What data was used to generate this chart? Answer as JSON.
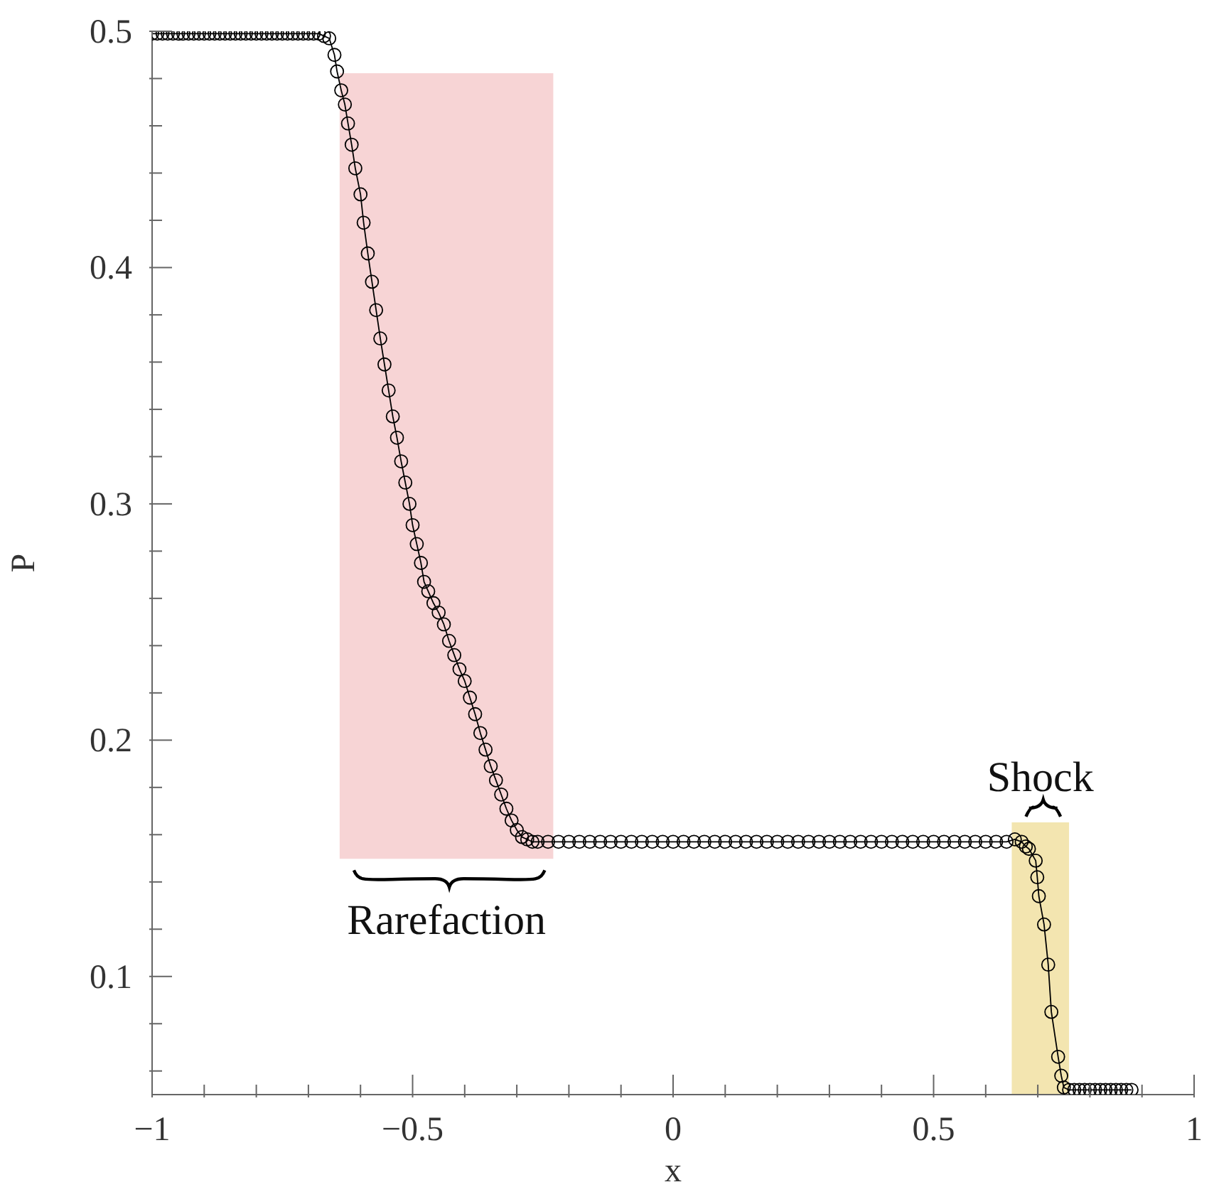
{
  "chart_data": {
    "type": "line",
    "xlabel": "x",
    "ylabel": "P",
    "xlim": [
      -1,
      1
    ],
    "ylim": [
      0.05,
      0.5
    ],
    "xticks": [
      {
        "value": -1,
        "label": "−1"
      },
      {
        "value": -0.9,
        "label": null
      },
      {
        "value": -0.8,
        "label": null
      },
      {
        "value": -0.7,
        "label": null
      },
      {
        "value": -0.6,
        "label": null
      },
      {
        "value": -0.5,
        "label": "−0.5"
      },
      {
        "value": -0.4,
        "label": null
      },
      {
        "value": -0.3,
        "label": null
      },
      {
        "value": -0.2,
        "label": null
      },
      {
        "value": -0.1,
        "label": null
      },
      0,
      {
        "value": 0.1,
        "label": null
      },
      {
        "value": 0.2,
        "label": null
      },
      {
        "value": 0.3,
        "label": null
      },
      {
        "value": 0.4,
        "label": null
      },
      0.5,
      {
        "value": 0.6,
        "label": null
      },
      {
        "value": 0.7,
        "label": null
      },
      {
        "value": 0.8,
        "label": null
      },
      {
        "value": 0.9,
        "label": null
      },
      1
    ],
    "yticks": [
      {
        "value": 0.06,
        "label": null
      },
      {
        "value": 0.08,
        "label": null
      },
      0.1,
      {
        "value": 0.12,
        "label": null
      },
      {
        "value": 0.14,
        "label": null
      },
      {
        "value": 0.16,
        "label": null
      },
      {
        "value": 0.18,
        "label": null
      },
      0.2,
      {
        "value": 0.22,
        "label": null
      },
      {
        "value": 0.24,
        "label": null
      },
      {
        "value": 0.26,
        "label": null
      },
      {
        "value": 0.28,
        "label": null
      },
      0.3,
      {
        "value": 0.32,
        "label": null
      },
      {
        "value": 0.34,
        "label": null
      },
      {
        "value": 0.36,
        "label": null
      },
      {
        "value": 0.38,
        "label": null
      },
      0.4,
      {
        "value": 0.42,
        "label": null
      },
      {
        "value": 0.44,
        "label": null
      },
      {
        "value": 0.46,
        "label": null
      },
      {
        "value": 0.48,
        "label": null
      },
      0.5
    ],
    "grid": false,
    "marker": "circle",
    "line_style": "solid",
    "bands": [
      {
        "axis": "x",
        "from": -0.64,
        "to": -0.23,
        "color": "#f7d4d5",
        "label": "Rarefaction"
      },
      {
        "axis": "x",
        "from": 0.65,
        "to": 0.76,
        "color": "#f3e5b0",
        "label": "Shock"
      }
    ],
    "series": [
      {
        "color": "#000000",
        "x": [
          -1,
          -0.99,
          -0.98,
          -0.97,
          -0.96,
          -0.95,
          -0.94,
          -0.93,
          -0.92,
          -0.91,
          -0.9,
          -0.89,
          -0.88,
          -0.87,
          -0.86,
          -0.85,
          -0.84,
          -0.83,
          -0.82,
          -0.81,
          -0.8,
          -0.79,
          -0.78,
          -0.77,
          -0.76,
          -0.75,
          -0.74,
          -0.73,
          -0.72,
          -0.71,
          -0.7,
          -0.69,
          -0.68,
          -0.67,
          -0.66,
          -0.65,
          -0.645,
          -0.637,
          -0.63,
          -0.624,
          -0.617,
          -0.61,
          -0.6,
          -0.594,
          -0.586,
          -0.578,
          -0.57,
          -0.562,
          -0.554,
          -0.546,
          -0.538,
          -0.53,
          -0.522,
          -0.514,
          -0.506,
          -0.5,
          -0.492,
          -0.484,
          -0.478,
          -0.47,
          -0.46,
          -0.45,
          -0.44,
          -0.43,
          -0.42,
          -0.41,
          -0.4,
          -0.39,
          -0.38,
          -0.37,
          -0.36,
          -0.35,
          -0.34,
          -0.33,
          -0.32,
          -0.31,
          -0.3,
          -0.29,
          -0.28,
          -0.27,
          -0.26,
          -0.24,
          -0.22,
          -0.2,
          -0.18,
          -0.16,
          -0.14,
          -0.12,
          -0.1,
          -0.08,
          -0.06,
          -0.04,
          -0.02,
          0,
          0.02,
          0.04,
          0.06,
          0.08,
          0.1,
          0.12,
          0.14,
          0.16,
          0.18,
          0.2,
          0.22,
          0.24,
          0.26,
          0.28,
          0.3,
          0.32,
          0.34,
          0.36,
          0.38,
          0.4,
          0.42,
          0.44,
          0.46,
          0.48,
          0.5,
          0.52,
          0.54,
          0.56,
          0.58,
          0.6,
          0.62,
          0.64,
          0.656,
          0.669,
          0.677,
          0.683,
          0.696,
          0.699,
          0.702,
          0.712,
          0.72,
          0.726,
          0.739,
          0.745,
          0.75,
          0.76,
          0.77,
          0.78,
          0.79,
          0.8,
          0.81,
          0.82,
          0.83,
          0.84,
          0.85,
          0.86,
          0.87,
          0.88
        ],
        "values": [
          0.499,
          0.499,
          0.499,
          0.499,
          0.499,
          0.499,
          0.499,
          0.499,
          0.499,
          0.499,
          0.499,
          0.499,
          0.499,
          0.499,
          0.499,
          0.499,
          0.499,
          0.499,
          0.499,
          0.499,
          0.499,
          0.499,
          0.499,
          0.499,
          0.499,
          0.499,
          0.499,
          0.499,
          0.499,
          0.499,
          0.499,
          0.499,
          0.499,
          0.498,
          0.497,
          0.49,
          0.483,
          0.475,
          0.469,
          0.461,
          0.452,
          0.442,
          0.431,
          0.419,
          0.406,
          0.394,
          0.382,
          0.37,
          0.359,
          0.348,
          0.337,
          0.328,
          0.318,
          0.309,
          0.3,
          0.291,
          0.283,
          0.275,
          0.267,
          0.263,
          0.258,
          0.254,
          0.249,
          0.242,
          0.236,
          0.23,
          0.225,
          0.218,
          0.211,
          0.203,
          0.196,
          0.189,
          0.183,
          0.177,
          0.171,
          0.166,
          0.162,
          0.159,
          0.158,
          0.157,
          0.157,
          0.157,
          0.157,
          0.157,
          0.157,
          0.157,
          0.157,
          0.157,
          0.157,
          0.157,
          0.157,
          0.157,
          0.157,
          0.157,
          0.157,
          0.157,
          0.157,
          0.157,
          0.157,
          0.157,
          0.157,
          0.157,
          0.157,
          0.157,
          0.157,
          0.157,
          0.157,
          0.157,
          0.157,
          0.157,
          0.157,
          0.157,
          0.157,
          0.157,
          0.157,
          0.157,
          0.157,
          0.157,
          0.157,
          0.157,
          0.157,
          0.157,
          0.157,
          0.157,
          0.157,
          0.157,
          0.158,
          0.157,
          0.155,
          0.154,
          0.149,
          0.142,
          0.134,
          0.122,
          0.105,
          0.085,
          0.066,
          0.058,
          0.053,
          0.052,
          0.052,
          0.052,
          0.052,
          0.052,
          0.052,
          0.052,
          0.052,
          0.052,
          0.052,
          0.052,
          0.052,
          0.052
        ]
      }
    ]
  }
}
